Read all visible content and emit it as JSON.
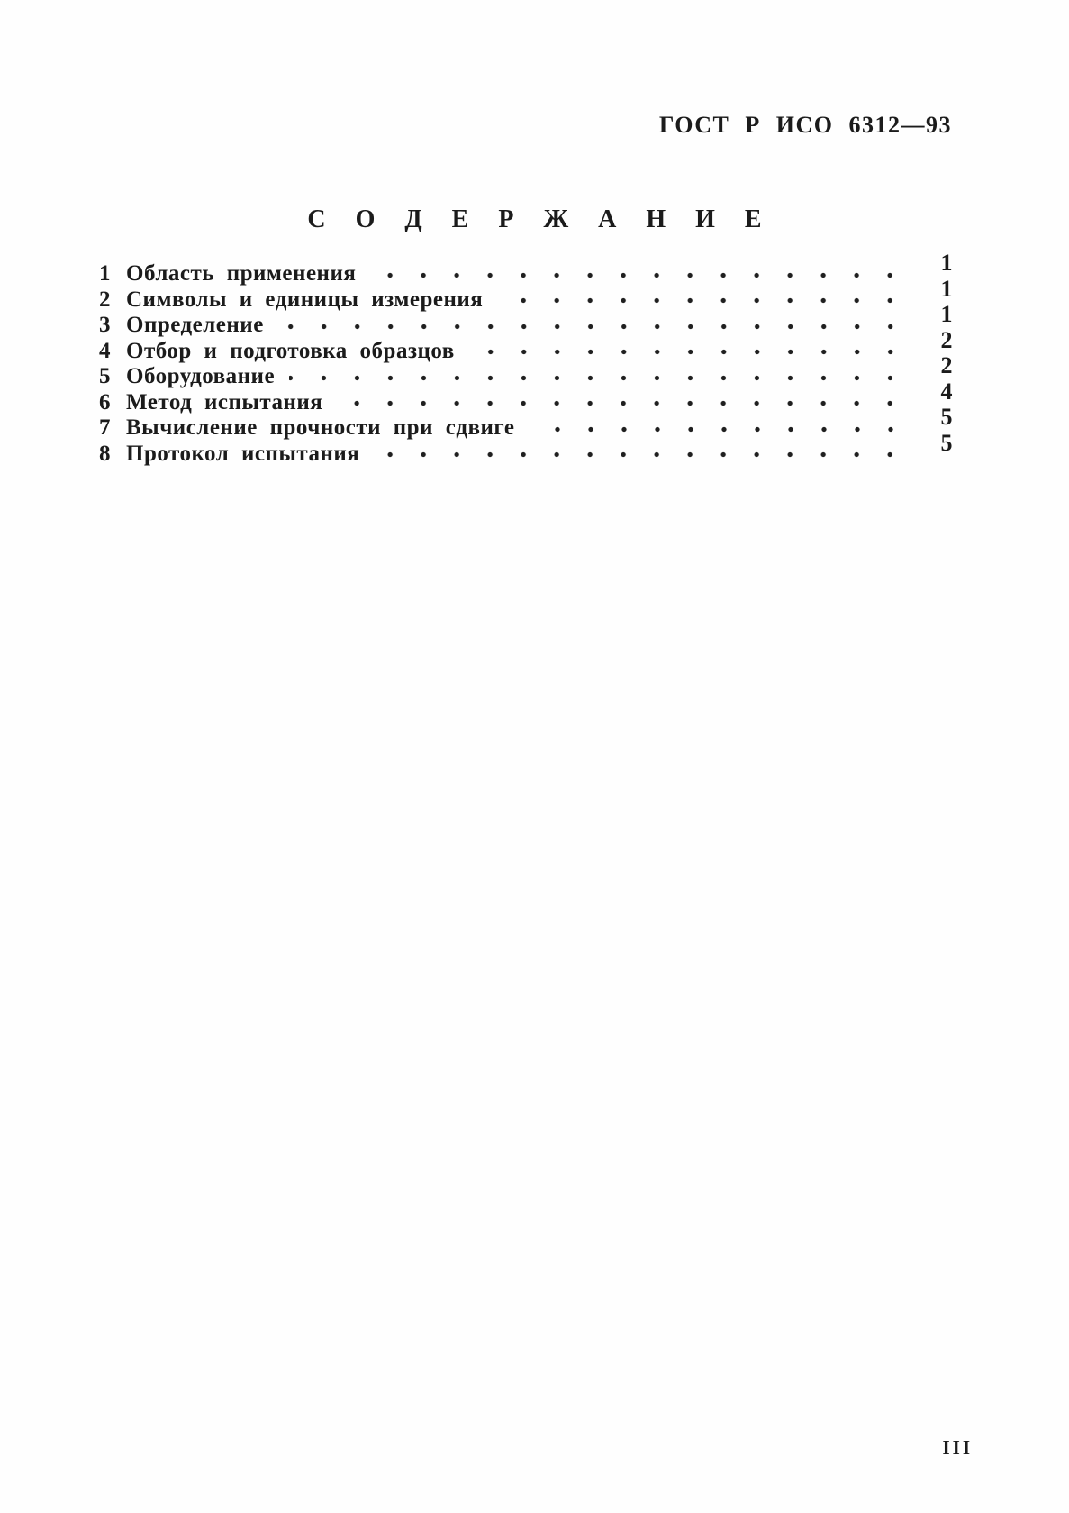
{
  "page": {
    "header_code": "ГОСТ Р ИСО 6312—93",
    "title": "С О Д Е Р Ж А Н И Е",
    "footer_page_number": "III"
  },
  "toc": {
    "items": [
      {
        "num": "1",
        "title": "Область применения",
        "page": "1"
      },
      {
        "num": "2",
        "title": "Символы и единицы измерения",
        "page": "1"
      },
      {
        "num": "3",
        "title": "Определение",
        "page": "1"
      },
      {
        "num": "4",
        "title": "Отбор и подготовка образцов",
        "page": "2"
      },
      {
        "num": "5",
        "title": "Оборудование",
        "page": "2"
      },
      {
        "num": "6",
        "title": "Метод испытания",
        "page": "4"
      },
      {
        "num": "7",
        "title": "Вычисление прочности при сдвиге",
        "page": "5"
      },
      {
        "num": "8",
        "title": "Протокол испытания",
        "page": "5"
      }
    ]
  }
}
